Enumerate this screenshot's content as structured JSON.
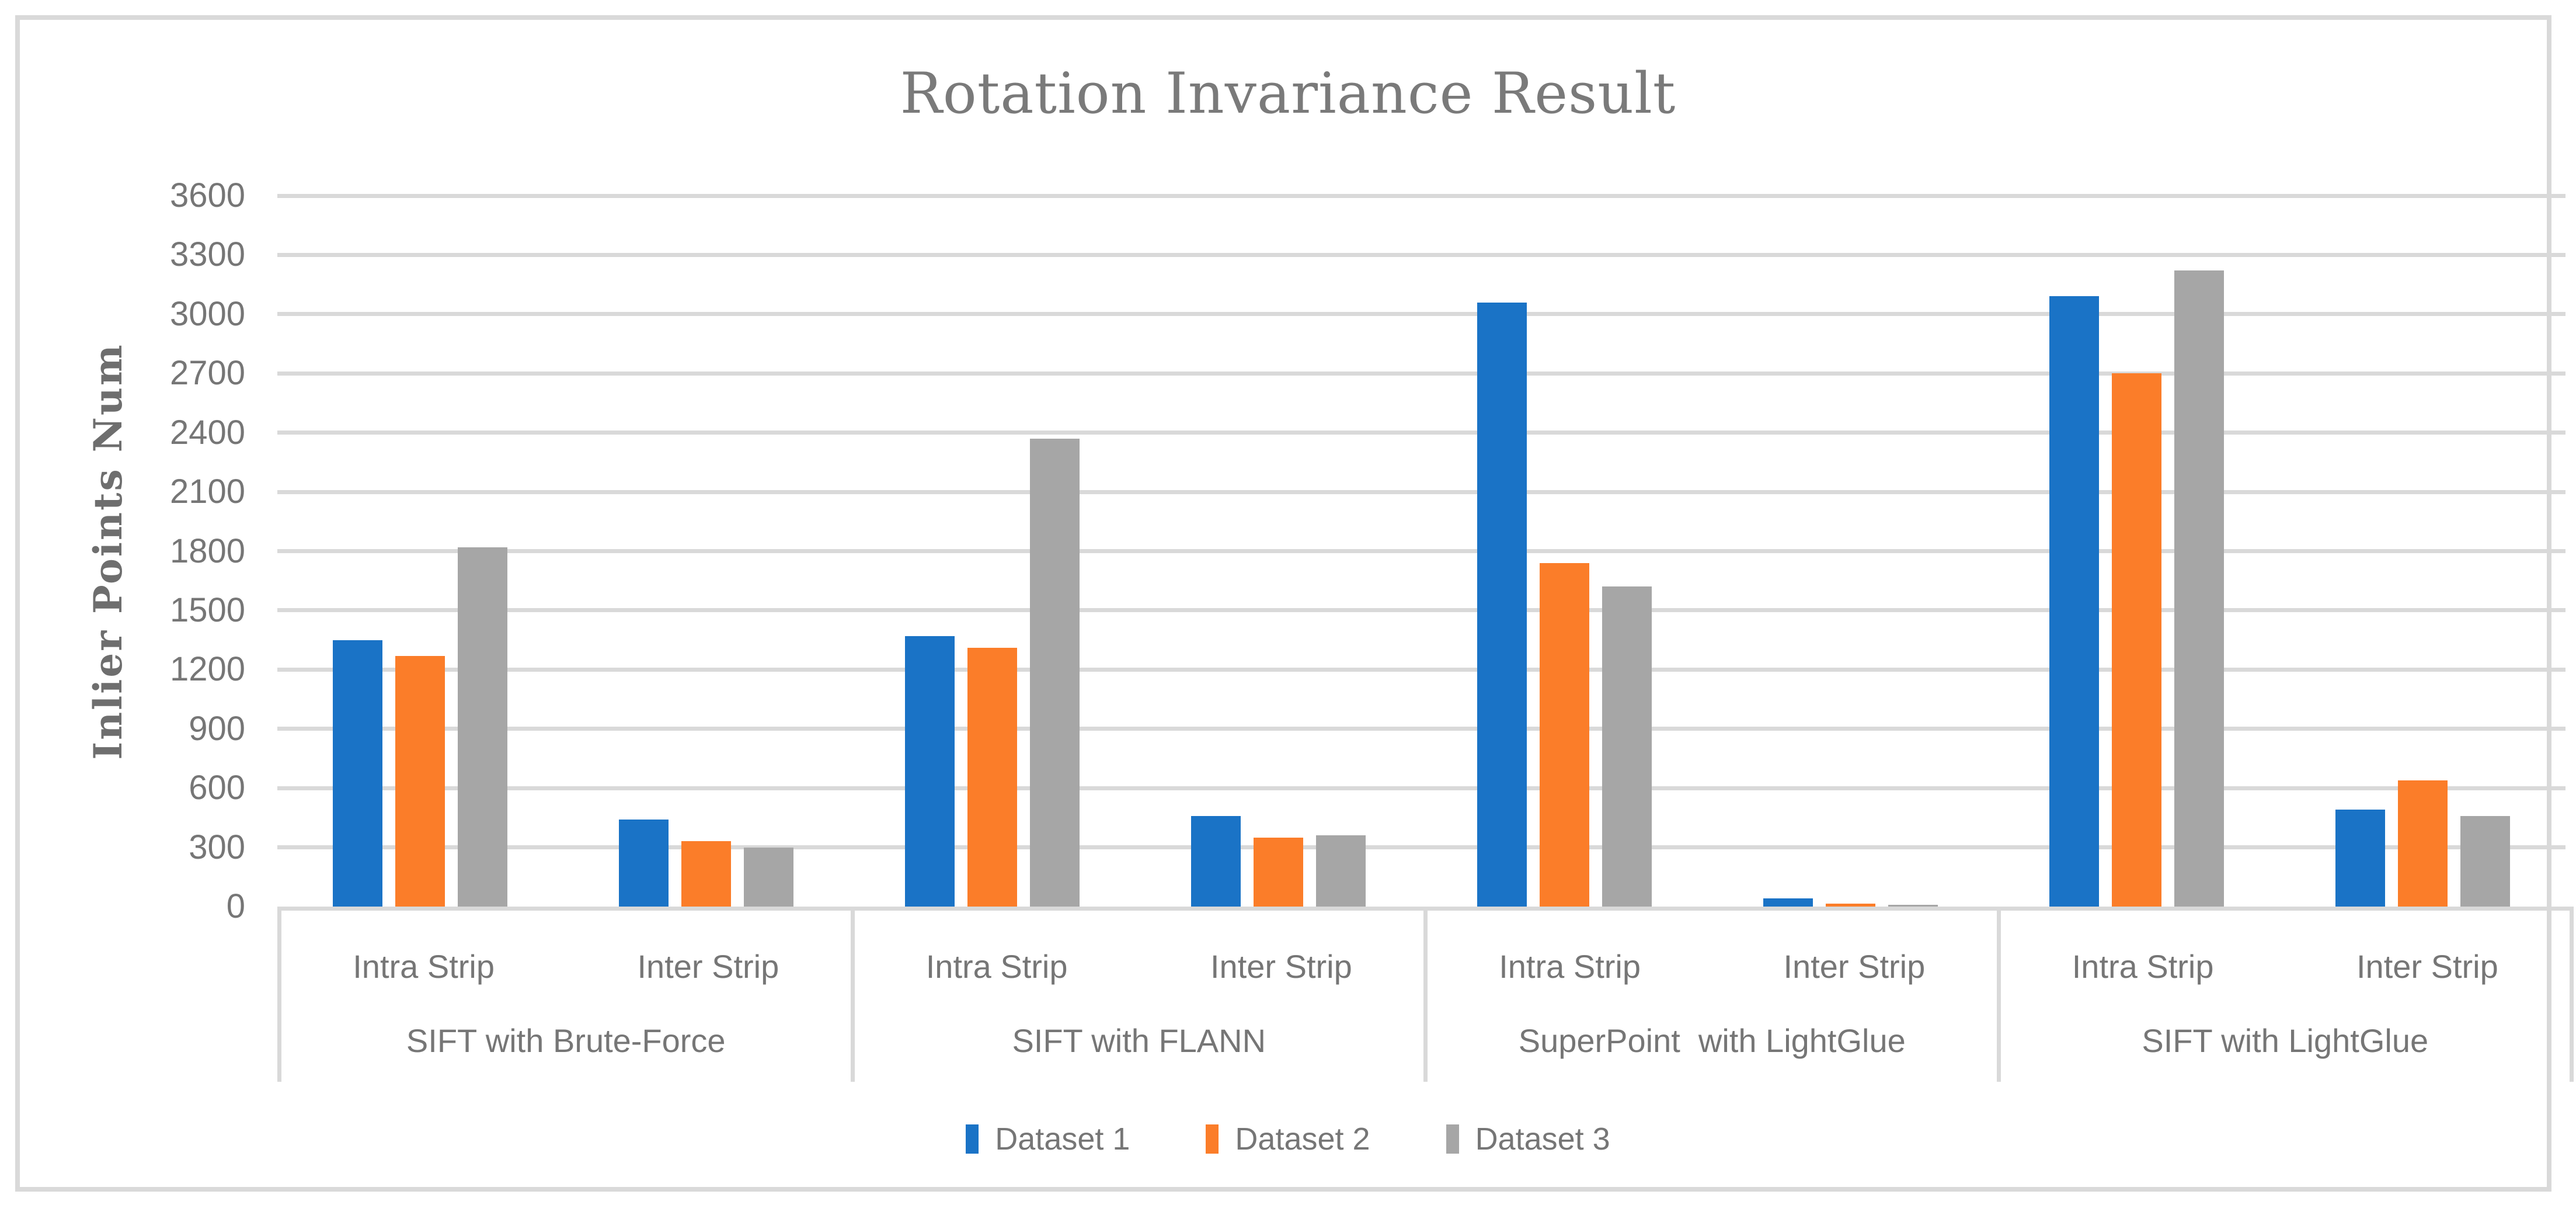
{
  "chart_data": {
    "type": "bar",
    "title": "Rotation Invariance Result",
    "ylabel": "Inlier Points Num",
    "ylim": [
      0,
      3600
    ],
    "yticks": [
      0,
      300,
      600,
      900,
      1200,
      1500,
      1800,
      2100,
      2400,
      2700,
      3000,
      3300,
      3600
    ],
    "grid": true,
    "legend_position": "bottom",
    "series": [
      {
        "name": "Dataset 1",
        "color": "#1A73C6"
      },
      {
        "name": "Dataset 2",
        "color": "#FB7D29"
      },
      {
        "name": "Dataset 3",
        "color": "#A6A6A6"
      }
    ],
    "groups": [
      {
        "label": "SIFT with Brute-Force",
        "subgroups": [
          {
            "label": "Intra Strip",
            "values": [
              1350,
              1270,
              1820
            ]
          },
          {
            "label": "Inter Strip",
            "values": [
              440,
              330,
              300
            ]
          }
        ]
      },
      {
        "label": "SIFT with FLANN",
        "subgroups": [
          {
            "label": "Intra Strip",
            "values": [
              1370,
              1310,
              2370
            ]
          },
          {
            "label": "Inter Strip",
            "values": [
              460,
              350,
              360
            ]
          }
        ]
      },
      {
        "label": "SuperPoint  with LightGlue",
        "subgroups": [
          {
            "label": "Intra Strip",
            "values": [
              3060,
              1740,
              1620
            ]
          },
          {
            "label": "Inter Strip",
            "values": [
              40,
              15,
              10
            ]
          }
        ]
      },
      {
        "label": "SIFT with LightGlue",
        "subgroups": [
          {
            "label": "Intra Strip",
            "values": [
              3090,
              2700,
              3220
            ]
          },
          {
            "label": "Inter Strip",
            "values": [
              490,
              640,
              460
            ]
          }
        ]
      }
    ]
  },
  "colors": {
    "gridline": "#D9D9D9",
    "axis_text": "#767676",
    "title_text": "#7A7A7A",
    "background": "#FFFFFF"
  }
}
